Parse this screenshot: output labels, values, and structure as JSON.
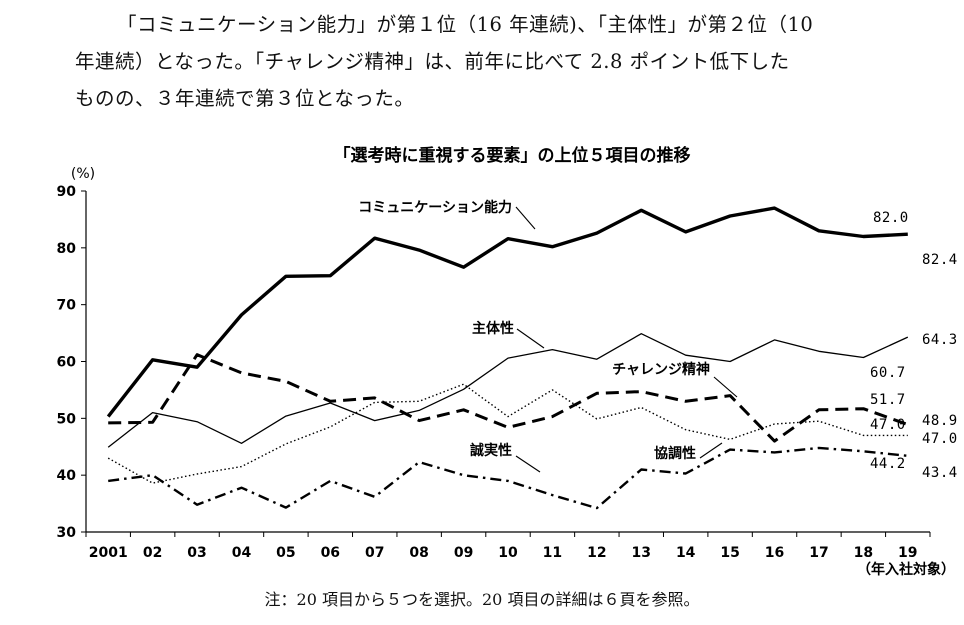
{
  "paragraph": {
    "lines": [
      "「コミュニケーション能力」が第１位（16 年連続)、「主体性」が第２位（10",
      "年連続）となった。「チャレンジ精神」は、前年に比べて 2.8 ポイント低下した",
      "ものの、３年連続で第３位となった。"
    ]
  },
  "note": "注：20 項目から５つを選択。20 項目の詳細は６頁を参照。",
  "chart_data": {
    "type": "line",
    "title": "「選考時に重視する要素」の上位５項目の推移",
    "ylabel": "(%)",
    "xlabel": "（年入社対象）",
    "ylim": [
      30,
      90
    ],
    "yticks": [
      30,
      40,
      50,
      60,
      70,
      80,
      90
    ],
    "categories": [
      "2001",
      "02",
      "03",
      "04",
      "05",
      "06",
      "07",
      "08",
      "09",
      "10",
      "11",
      "12",
      "13",
      "14",
      "15",
      "16",
      "17",
      "18",
      "19"
    ],
    "series": [
      {
        "name": "コミュニケーション能力",
        "style": "thick-solid",
        "values": [
          50.3,
          60.3,
          59.0,
          68.2,
          75.0,
          75.1,
          81.7,
          79.6,
          76.6,
          81.6,
          80.2,
          82.6,
          86.6,
          82.8,
          85.6,
          87.0,
          83.0,
          82.0,
          82.4
        ]
      },
      {
        "name": "主体性",
        "style": "thin-solid",
        "values": [
          44.9,
          51.0,
          49.4,
          45.6,
          50.4,
          52.7,
          49.6,
          51.4,
          55.1,
          60.6,
          62.1,
          60.4,
          64.9,
          61.1,
          60.0,
          63.8,
          61.8,
          60.7,
          64.3
        ]
      },
      {
        "name": "チャレンジ精神",
        "style": "thick-dashed",
        "values": [
          49.2,
          49.3,
          61.2,
          58.0,
          56.5,
          53.0,
          53.6,
          49.6,
          51.5,
          48.4,
          50.3,
          54.4,
          54.7,
          53.0,
          54.0,
          46.0,
          51.5,
          51.7,
          48.9
        ]
      },
      {
        "name": "協調性",
        "style": "dotted",
        "values": [
          43.0,
          38.6,
          40.2,
          41.5,
          45.5,
          48.5,
          52.8,
          53.0,
          56.0,
          50.3,
          55.0,
          49.9,
          51.9,
          48.0,
          46.3,
          49.0,
          49.5,
          47.0,
          47.0
        ]
      },
      {
        "name": "誠実性",
        "style": "dash-dot",
        "values": [
          39.0,
          40.0,
          34.8,
          37.8,
          34.3,
          39.0,
          36.2,
          42.3,
          40.0,
          39.0,
          36.5,
          34.2,
          41.0,
          40.3,
          44.5,
          44.0,
          44.8,
          44.2,
          43.4
        ]
      }
    ],
    "value_labels": [
      {
        "text": "82.0"
      },
      {
        "text": "82.4"
      },
      {
        "text": "60.7"
      },
      {
        "text": "64.3"
      },
      {
        "text": "51.7"
      },
      {
        "text": "48.9"
      },
      {
        "text": "47.0"
      },
      {
        "text": "47.0"
      },
      {
        "text": "44.2"
      },
      {
        "text": "43.4"
      }
    ],
    "grid": false,
    "legend": "inline-annotations"
  },
  "colors": {
    "line": "#000000",
    "text": "#111111",
    "background": "#ffffff"
  }
}
